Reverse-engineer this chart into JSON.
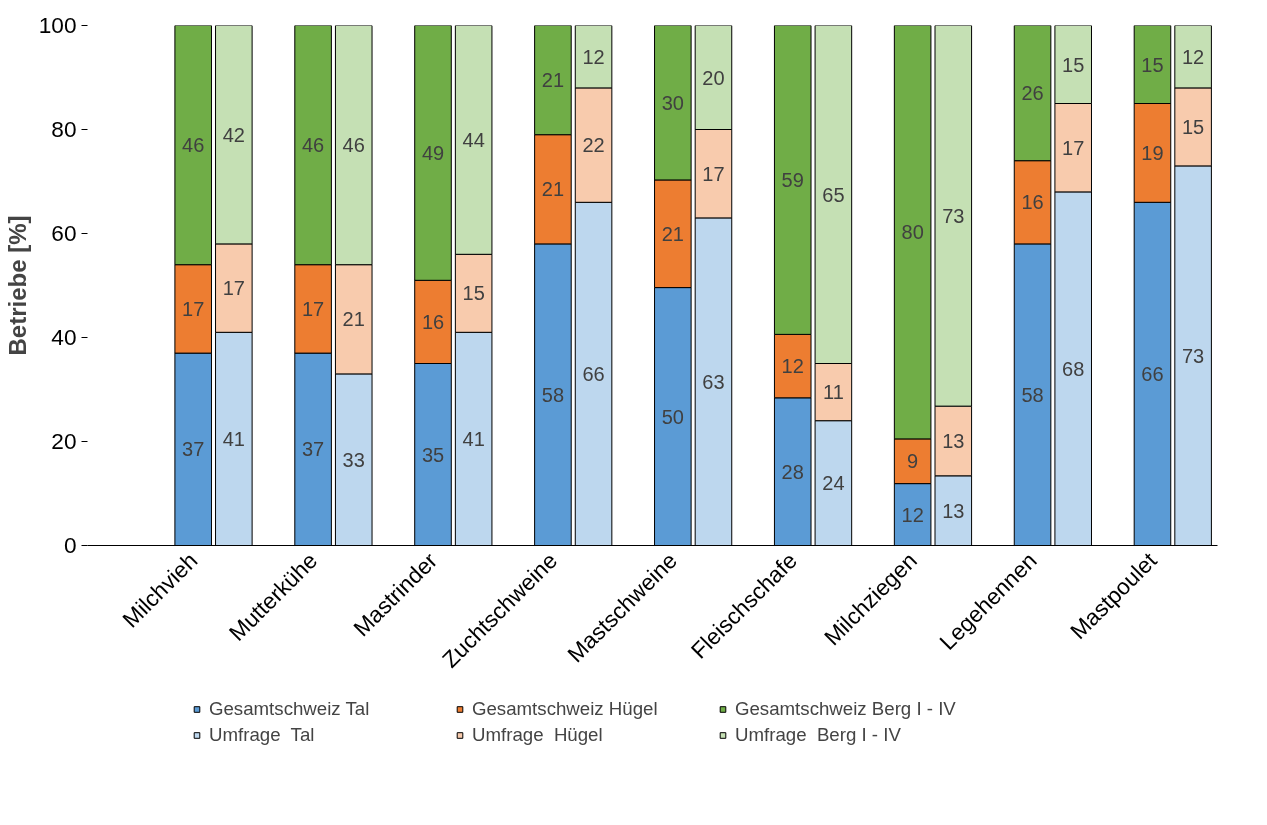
{
  "chart_data": {
    "type": "bar",
    "stacked": true,
    "ylabel": "Betriebe [%]",
    "categories": [
      "Milchvieh",
      null,
      "Mutterkühe",
      null,
      "Mastrinder",
      null,
      "Zuchtschweine",
      null,
      "Mastschweine",
      null,
      "Fleischschafe",
      null,
      "Milchziegen",
      null,
      "Legehennen",
      null,
      "Mastpoulet",
      null
    ],
    "ylim": [
      0,
      100
    ],
    "yticks": [
      0,
      20,
      40,
      60,
      80,
      100
    ],
    "legend": "bottom",
    "series": [
      {
        "name": "Gesamtschweiz Tal",
        "color": "#5b9bd5",
        "values": [
          37,
          null,
          37,
          null,
          35,
          null,
          58,
          null,
          49.6,
          null,
          28.4,
          null,
          11.9,
          null,
          58,
          null,
          66,
          null
        ],
        "value_labels": [
          "37",
          null,
          "37",
          null,
          "35",
          null,
          "58",
          null,
          "50",
          null,
          "28",
          null,
          "12",
          null,
          "58",
          null,
          "66",
          null
        ]
      },
      {
        "name": "Gesamtschweiz Hügel",
        "color": "#ed7d31",
        "values": [
          17,
          null,
          17,
          null,
          16,
          null,
          21,
          null,
          20.7,
          null,
          12.2,
          null,
          8.6,
          null,
          16,
          null,
          19,
          null
        ],
        "value_labels": [
          "17",
          null,
          "17",
          null,
          "16",
          null,
          "21",
          null,
          "21",
          null,
          "12",
          null,
          "9",
          null,
          "16",
          null,
          "19",
          null
        ]
      },
      {
        "name": "Gesamtschweiz Berg I - IV",
        "color": "#70ad47",
        "values": [
          46,
          null,
          46,
          null,
          49,
          null,
          21,
          null,
          29.7,
          null,
          59.4,
          null,
          79.5,
          null,
          26,
          null,
          15,
          null
        ],
        "value_labels": [
          "46",
          null,
          "46",
          null,
          "49",
          null,
          "21",
          null,
          "30",
          null,
          "59",
          null,
          "80",
          null,
          "26",
          null,
          "15",
          null
        ]
      },
      {
        "name": "Umfrage  Tal",
        "color": "#bdd7ee",
        "values": [
          null,
          41,
          null,
          33,
          null,
          41,
          null,
          66,
          null,
          63,
          null,
          24,
          null,
          13.4,
          null,
          68,
          null,
          73
        ],
        "value_labels": [
          null,
          "41",
          null,
          "33",
          null,
          "41",
          null,
          "66",
          null,
          "63",
          null,
          "24",
          null,
          "13",
          null,
          "68",
          null,
          "73"
        ]
      },
      {
        "name": "Umfrage  Hügel",
        "color": "#f8cbad",
        "values": [
          null,
          17,
          null,
          21,
          null,
          15,
          null,
          22,
          null,
          17,
          null,
          11,
          null,
          13.4,
          null,
          17,
          null,
          15
        ],
        "value_labels": [
          null,
          "17",
          null,
          "21",
          null,
          "15",
          null,
          "22",
          null,
          "17",
          null,
          "11",
          null,
          "13",
          null,
          "17",
          null,
          "15"
        ]
      },
      {
        "name": "Umfrage  Berg I - IV",
        "color": "#c5e0b4",
        "values": [
          null,
          42,
          null,
          46,
          null,
          44,
          null,
          12,
          null,
          20,
          null,
          65,
          null,
          73.2,
          null,
          15,
          null,
          12
        ],
        "value_labels": [
          null,
          "42",
          null,
          "46",
          null,
          "44",
          null,
          "12",
          null,
          "20",
          null,
          "65",
          null,
          "73",
          null,
          "15",
          null,
          "12"
        ]
      }
    ]
  }
}
